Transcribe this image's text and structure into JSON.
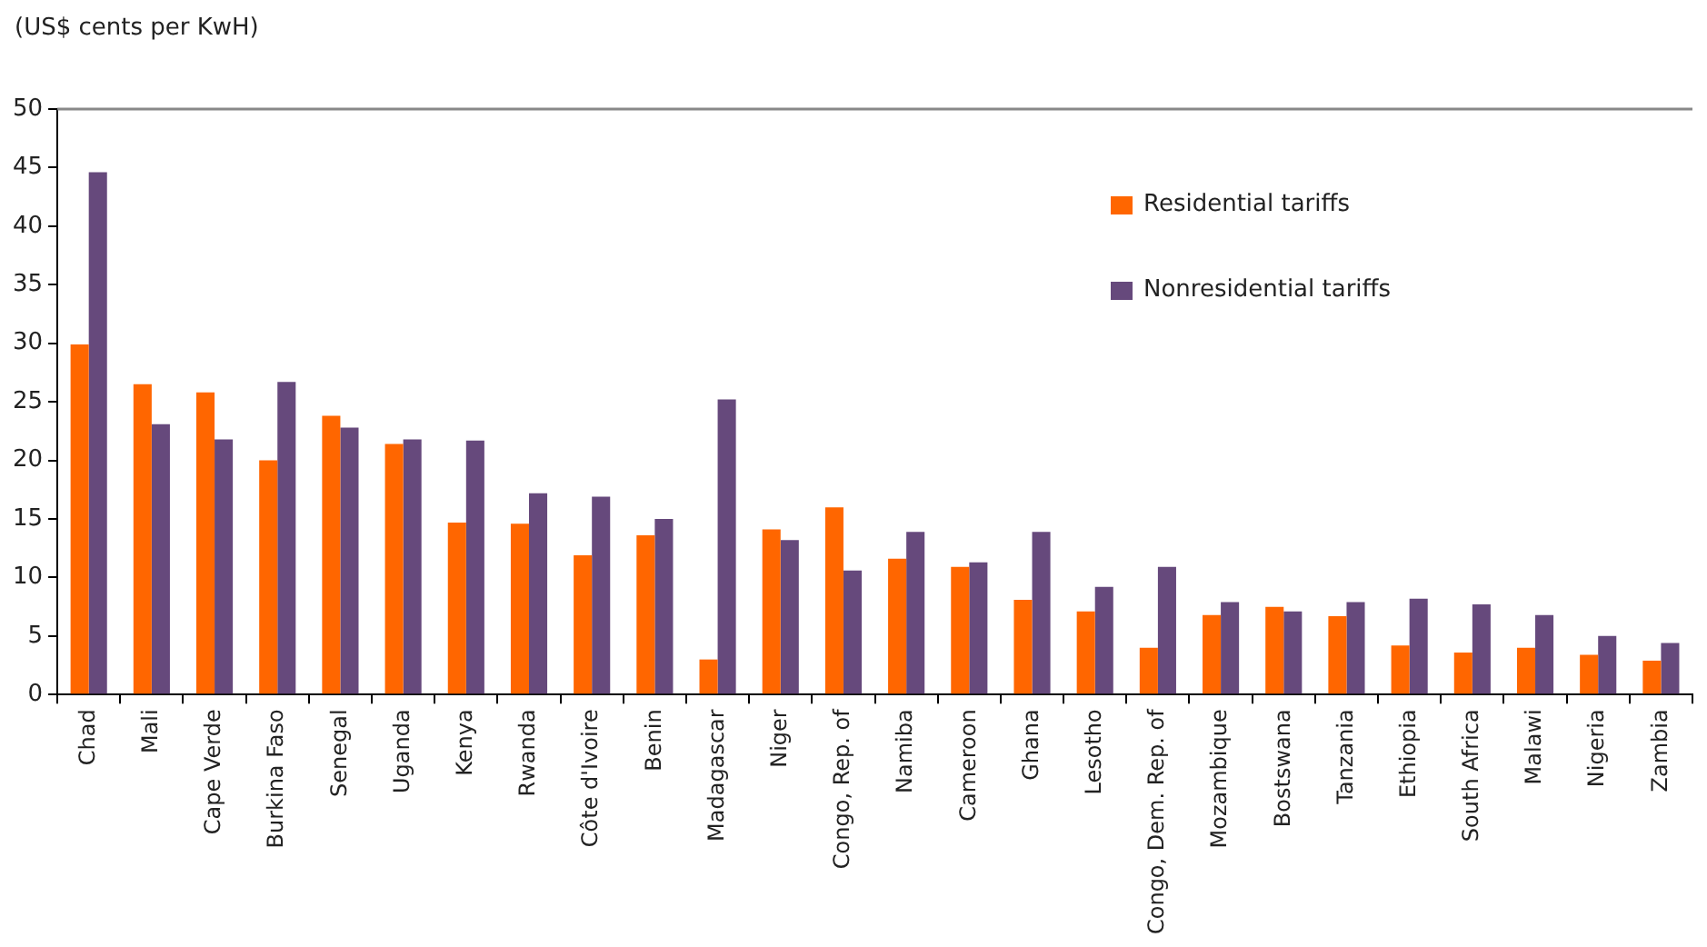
{
  "chart_data": {
    "type": "bar",
    "ylabel": "(US$ cents per KwH)",
    "categories": [
      "Chad",
      "Mali",
      "Cape Verde",
      "Burkina Faso",
      "Senegal",
      "Uganda",
      "Kenya",
      "Rwanda",
      "Côte d'Ivoire",
      "Benin",
      "Madagascar",
      "Niger",
      "Congo, Rep. of",
      "Namiba",
      "Cameroon",
      "Ghana",
      "Lesotho",
      "Congo, Dem. Rep. of",
      "Mozambique",
      "Bostswana",
      "Tanzania",
      "Ethiopia",
      "South Africa",
      "Malawi",
      "Nigeria",
      "Zambia"
    ],
    "series": [
      {
        "name": "Residential tariffs",
        "color": "#ff6600",
        "values": [
          29.9,
          26.5,
          25.8,
          20.0,
          23.8,
          21.4,
          14.7,
          14.6,
          11.9,
          13.6,
          3.0,
          14.1,
          16.0,
          11.6,
          10.9,
          8.1,
          7.1,
          4.0,
          6.8,
          7.5,
          6.7,
          4.2,
          3.6,
          4.0,
          3.4,
          2.9
        ]
      },
      {
        "name": "Nonresidential tariffs",
        "color": "#66497c",
        "values": [
          44.6,
          23.1,
          21.8,
          26.7,
          22.8,
          21.8,
          21.7,
          17.2,
          16.9,
          15.0,
          25.2,
          13.2,
          10.6,
          13.9,
          11.3,
          13.9,
          9.2,
          10.9,
          7.9,
          7.1,
          7.9,
          8.2,
          7.7,
          6.8,
          5.0,
          4.4
        ]
      }
    ],
    "ylim": [
      0,
      50
    ],
    "yticks": [
      0,
      5,
      10,
      15,
      20,
      25,
      30,
      35,
      40,
      45,
      50
    ],
    "grid": false,
    "legend": "top right"
  }
}
